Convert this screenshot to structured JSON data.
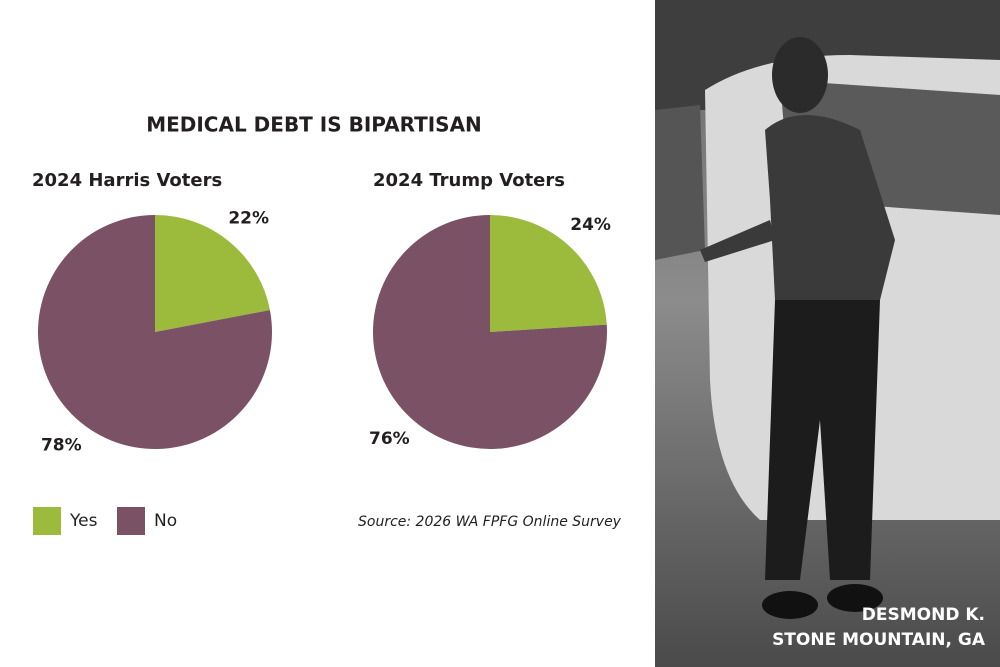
{
  "title": "MEDICAL DEBT IS BIPARTISAN",
  "chart_data": [
    {
      "type": "pie",
      "title": "2024 Harris Voters",
      "categories": [
        "Yes",
        "No"
      ],
      "values": [
        22,
        78
      ],
      "value_labels": [
        "22%",
        "78%"
      ],
      "colors": [
        "#9cbb3c",
        "#7b5265"
      ]
    },
    {
      "type": "pie",
      "title": "2024 Trump Voters",
      "categories": [
        "Yes",
        "No"
      ],
      "values": [
        24,
        76
      ],
      "value_labels": [
        "24%",
        "76%"
      ],
      "colors": [
        "#9cbb3c",
        "#7b5265"
      ]
    }
  ],
  "source": "Source: 2026 WA FPFG Online Survey",
  "photo_caption": {
    "name": "DESMOND K.",
    "location": "STONE MOUNTAIN, GA"
  }
}
